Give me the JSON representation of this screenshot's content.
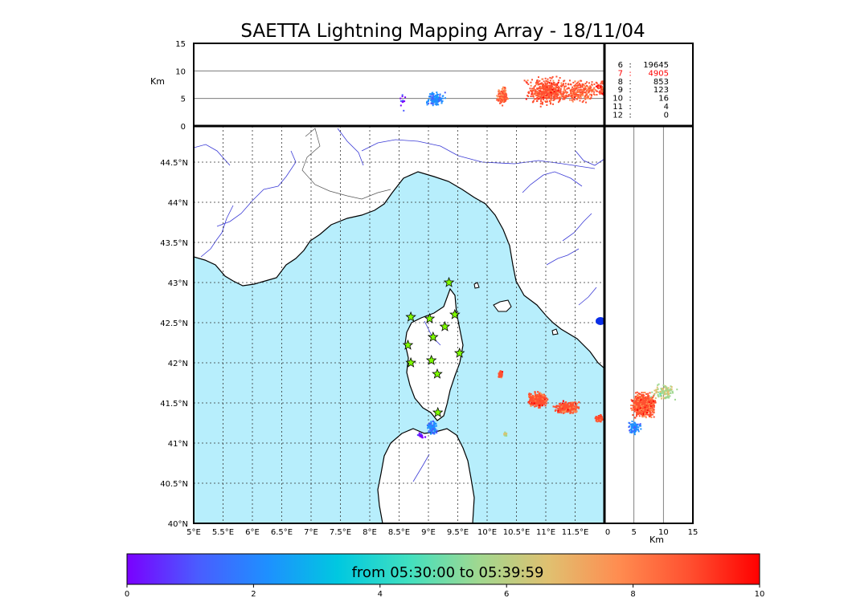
{
  "figure": {
    "title": "SAETTA Lightning Mapping Array - 18/11/04",
    "colorbar_label": "from 05:30:00 to 05:39:59",
    "colorbar_ticks": [
      "0",
      "2",
      "4",
      "6",
      "8",
      "10"
    ]
  },
  "colors": {
    "sea": "#b7eefc",
    "land": "#ffffff",
    "rivers": "#3b3bd6",
    "gradient": [
      "#7a00ff",
      "#4a5cff",
      "#1e90ff",
      "#00c8e0",
      "#40e0c0",
      "#a0d890",
      "#e0c070",
      "#ff8c50",
      "#ff5030",
      "#ff0000"
    ],
    "highlight_count": "#ff0000",
    "station_fill": "#7fff00"
  },
  "chart_data": [
    {
      "type": "scatter",
      "panel": "altitude-longitude",
      "y_label": "Km",
      "y_ticks": [
        "15",
        "10",
        "5",
        "0"
      ],
      "ylim": [
        0,
        15
      ],
      "xlim": [
        5.0,
        12.0
      ],
      "hlines": [
        5,
        10
      ],
      "clusters": [
        {
          "lon": 8.55,
          "alt": 4.8,
          "lon_spread": 0.03,
          "alt_spread": 2.0,
          "n": 12,
          "color_pos": 0.05
        },
        {
          "lon": 9.1,
          "alt": 5.0,
          "lon_spread": 0.1,
          "alt_spread": 1.5,
          "n": 120,
          "color_pos": 0.2
        },
        {
          "lon": 10.25,
          "alt": 5.5,
          "lon_spread": 0.06,
          "alt_spread": 2.0,
          "n": 140,
          "color_pos": 0.85
        },
        {
          "lon": 11.0,
          "alt": 6.5,
          "lon_spread": 0.22,
          "alt_spread": 3.0,
          "n": 500,
          "color_pos": 0.88
        },
        {
          "lon": 11.55,
          "alt": 6.5,
          "lon_spread": 0.2,
          "alt_spread": 2.5,
          "n": 260,
          "color_pos": 0.85
        },
        {
          "lon": 11.95,
          "alt": 7.0,
          "lon_spread": 0.06,
          "alt_spread": 2.0,
          "n": 80,
          "color_pos": 0.9
        }
      ]
    },
    {
      "type": "table",
      "panel": "station-counts",
      "rows": [
        {
          "stations": "6",
          "count": "19645",
          "highlight": false
        },
        {
          "stations": "7",
          "count": "4905",
          "highlight": true
        },
        {
          "stations": "8",
          "count": "853",
          "highlight": false
        },
        {
          "stations": "9",
          "count": "123",
          "highlight": false
        },
        {
          "stations": "10",
          "count": "16",
          "highlight": false
        },
        {
          "stations": "11",
          "count": "4",
          "highlight": false
        },
        {
          "stations": "12",
          "count": "0",
          "highlight": false
        }
      ]
    },
    {
      "type": "scatter",
      "panel": "map",
      "xlim": [
        5.0,
        12.0
      ],
      "ylim": [
        40.0,
        44.95
      ],
      "x_ticks": [
        5.0,
        5.5,
        6.0,
        6.5,
        7.0,
        7.5,
        8.0,
        8.5,
        9.0,
        9.5,
        10.0,
        10.5,
        11.0,
        11.5
      ],
      "x_tick_labels": [
        "5°E",
        "5.5°E",
        "6°E",
        "6.5°E",
        "7°E",
        "7.5°E",
        "8°E",
        "8.5°E",
        "9°E",
        "9.5°E",
        "10°E",
        "10.5°E",
        "11°E",
        "11.5°E"
      ],
      "y_ticks": [
        40.0,
        40.5,
        41.0,
        41.5,
        42.0,
        42.5,
        43.0,
        43.5,
        44.0,
        44.5
      ],
      "y_tick_labels": [
        "40°N",
        "40.5°N",
        "41°N",
        "41.5°N",
        "42°N",
        "42.5°N",
        "43°N",
        "43.5°N",
        "44°N",
        "44.5°N"
      ],
      "grid": true,
      "stations": [
        [
          9.35,
          43.0
        ],
        [
          8.7,
          42.57
        ],
        [
          9.02,
          42.55
        ],
        [
          9.45,
          42.6
        ],
        [
          9.28,
          42.45
        ],
        [
          8.65,
          42.22
        ],
        [
          9.08,
          42.32
        ],
        [
          9.53,
          42.12
        ],
        [
          8.7,
          42.0
        ],
        [
          9.05,
          42.03
        ],
        [
          9.15,
          41.86
        ],
        [
          9.16,
          41.38
        ]
      ],
      "clusters": [
        {
          "lon": 10.22,
          "lat": 41.87,
          "lon_spread": 0.05,
          "lat_spread": 0.05,
          "n": 60,
          "color_pos": 0.88
        },
        {
          "lon": 10.85,
          "lat": 41.55,
          "lon_spread": 0.2,
          "lat_spread": 0.12,
          "n": 300,
          "color_pos": 0.88
        },
        {
          "lon": 11.35,
          "lat": 41.45,
          "lon_spread": 0.25,
          "lat_spread": 0.1,
          "n": 260,
          "color_pos": 0.86
        },
        {
          "lon": 11.9,
          "lat": 41.32,
          "lon_spread": 0.08,
          "lat_spread": 0.05,
          "n": 80,
          "color_pos": 0.9
        },
        {
          "lon": 9.05,
          "lat": 41.2,
          "lon_spread": 0.1,
          "lat_spread": 0.1,
          "n": 80,
          "color_pos": 0.18
        },
        {
          "lon": 8.85,
          "lat": 41.1,
          "lon_spread": 0.1,
          "lat_spread": 0.05,
          "n": 18,
          "color_pos": 0.05
        },
        {
          "lon": 10.3,
          "lat": 41.12,
          "lon_spread": 0.05,
          "lat_spread": 0.03,
          "n": 12,
          "color_pos": 0.6
        }
      ]
    },
    {
      "type": "scatter",
      "panel": "latitude-altitude",
      "x_label": "Km",
      "x_ticks": [
        "0",
        "5",
        "10",
        "15"
      ],
      "xlim": [
        0,
        15
      ],
      "vlines": [
        5,
        10
      ],
      "clusters": [
        {
          "alt": 6.5,
          "lat": 41.48,
          "alt_spread": 2.5,
          "lat_spread": 0.18,
          "n": 900,
          "color_pos": 0.87
        },
        {
          "alt": 5.0,
          "lat": 41.2,
          "alt_spread": 1.4,
          "lat_spread": 0.1,
          "n": 100,
          "color_pos": 0.2
        },
        {
          "alt": 10.0,
          "lat": 41.65,
          "alt_spread": 2.5,
          "lat_spread": 0.12,
          "n": 120,
          "color_pos": 0.6
        }
      ]
    }
  ]
}
